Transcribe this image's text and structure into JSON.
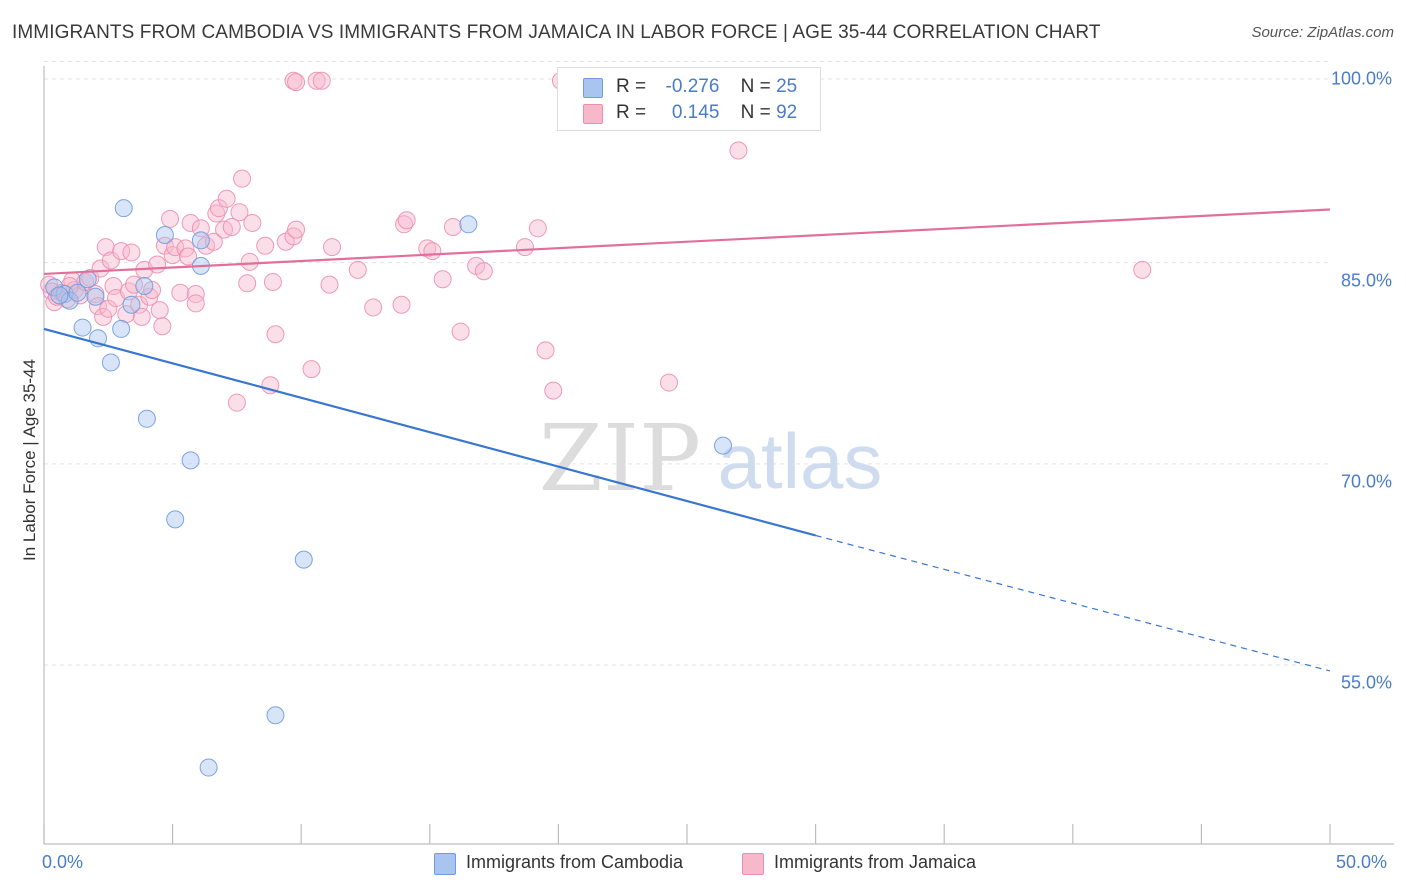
{
  "header": {
    "title": "IMMIGRANTS FROM CAMBODIA VS IMMIGRANTS FROM JAMAICA IN LABOR FORCE | AGE 35-44 CORRELATION CHART",
    "source": "Source: ZipAtlas.com"
  },
  "watermark": {
    "zip": "ZIP",
    "atlas": "atlas"
  },
  "legend": {
    "rows": [
      {
        "r_label": "R =",
        "r_value": "-0.276",
        "n_label": "N =",
        "n_value": "25",
        "color": "#a9c4ee",
        "stroke": "#6f9be0"
      },
      {
        "r_label": "R =",
        "r_value": " 0.145",
        "n_label": "N =",
        "n_value": "92",
        "color": "#f7b8cc",
        "stroke": "#ec8fae"
      }
    ]
  },
  "bottom_legend": {
    "items": [
      {
        "label": "Immigrants from Cambodia",
        "color": "#a9c4ee",
        "stroke": "#6f9be0"
      },
      {
        "label": "Immigrants from Jamaica",
        "color": "#f7b8cc",
        "stroke": "#ec8fae"
      }
    ]
  },
  "chart_data": {
    "type": "scatter",
    "xlabel": "",
    "ylabel": "In Labor Force | Age 35-44",
    "xlim": [
      0,
      50
    ],
    "ylim": [
      43,
      101
    ],
    "x_tick_labels": {
      "min": "0.0%",
      "max": "50.0%"
    },
    "y_ticks": [
      {
        "value": 100,
        "label": "100.0%"
      },
      {
        "value": 85,
        "label": "85.0%"
      },
      {
        "value": 70,
        "label": "70.0%"
      },
      {
        "value": 55,
        "label": "55.0%"
      }
    ],
    "grid": true,
    "series": [
      {
        "name": "Immigrants from Cambodia",
        "color": "#6f9be0",
        "fill": "#a9c4ee",
        "trend": {
          "x0": 0,
          "y0": 81.4,
          "x1": 30,
          "y1": 66.0,
          "dash_to_x": 50,
          "dash_to_y": 55.9,
          "color": "#3876d1"
        },
        "points": [
          [
            0.4,
            84.5
          ],
          [
            0.8,
            84.0
          ],
          [
            1.0,
            83.5
          ],
          [
            1.3,
            84.1
          ],
          [
            1.5,
            81.5
          ],
          [
            1.7,
            85.1
          ],
          [
            2.0,
            83.8
          ],
          [
            2.1,
            80.7
          ],
          [
            2.6,
            78.9
          ],
          [
            3.0,
            81.4
          ],
          [
            3.1,
            90.4
          ],
          [
            3.4,
            83.2
          ],
          [
            3.9,
            84.6
          ],
          [
            4.0,
            74.7
          ],
          [
            4.7,
            88.4
          ],
          [
            5.1,
            67.2
          ],
          [
            5.7,
            71.6
          ],
          [
            6.1,
            88.0
          ],
          [
            6.1,
            86.1
          ],
          [
            6.4,
            48.7
          ],
          [
            9.0,
            52.6
          ],
          [
            10.1,
            64.2
          ],
          [
            16.5,
            89.2
          ],
          [
            26.4,
            72.7
          ],
          [
            0.6,
            83.9
          ]
        ]
      },
      {
        "name": "Immigrants from Jamaica",
        "color": "#ec8fae",
        "fill": "#f7b8cc",
        "trend": {
          "x0": 0,
          "y0": 85.5,
          "x1": 50,
          "y1": 90.3,
          "color": "#e0709a"
        },
        "points": [
          [
            0.2,
            84.7
          ],
          [
            0.3,
            84.2
          ],
          [
            0.4,
            83.4
          ],
          [
            0.5,
            83.8
          ],
          [
            0.7,
            84.1
          ],
          [
            0.9,
            83.6
          ],
          [
            1.1,
            85.0
          ],
          [
            1.2,
            84.3
          ],
          [
            1.4,
            83.9
          ],
          [
            1.6,
            84.9
          ],
          [
            1.8,
            85.2
          ],
          [
            2.0,
            84.0
          ],
          [
            2.1,
            83.1
          ],
          [
            2.2,
            85.9
          ],
          [
            2.3,
            82.3
          ],
          [
            2.4,
            87.5
          ],
          [
            2.5,
            82.9
          ],
          [
            2.6,
            86.5
          ],
          [
            2.7,
            84.6
          ],
          [
            2.8,
            83.7
          ],
          [
            3.0,
            87.2
          ],
          [
            3.2,
            82.5
          ],
          [
            3.3,
            84.2
          ],
          [
            3.4,
            87.1
          ],
          [
            3.5,
            84.7
          ],
          [
            3.7,
            83.2
          ],
          [
            3.8,
            82.3
          ],
          [
            3.9,
            85.8
          ],
          [
            4.1,
            83.8
          ],
          [
            4.2,
            84.3
          ],
          [
            4.4,
            86.2
          ],
          [
            4.5,
            82.8
          ],
          [
            4.6,
            81.6
          ],
          [
            4.7,
            87.6
          ],
          [
            4.9,
            89.6
          ],
          [
            5.0,
            86.9
          ],
          [
            5.1,
            87.5
          ],
          [
            5.3,
            84.1
          ],
          [
            5.5,
            87.4
          ],
          [
            5.6,
            86.8
          ],
          [
            5.7,
            89.3
          ],
          [
            5.9,
            84.0
          ],
          [
            5.9,
            83.3
          ],
          [
            6.1,
            88.9
          ],
          [
            6.3,
            87.6
          ],
          [
            6.6,
            87.9
          ],
          [
            6.7,
            90.0
          ],
          [
            6.8,
            90.4
          ],
          [
            7.0,
            88.8
          ],
          [
            7.1,
            91.1
          ],
          [
            7.3,
            89.0
          ],
          [
            7.5,
            75.9
          ],
          [
            7.6,
            90.1
          ],
          [
            7.7,
            92.6
          ],
          [
            7.9,
            84.8
          ],
          [
            8.0,
            86.4
          ],
          [
            8.1,
            89.3
          ],
          [
            8.6,
            87.6
          ],
          [
            8.8,
            77.2
          ],
          [
            8.9,
            84.9
          ],
          [
            9.0,
            81.0
          ],
          [
            9.4,
            87.9
          ],
          [
            9.7,
            88.3
          ],
          [
            9.8,
            88.8
          ],
          [
            9.7,
            99.9
          ],
          [
            9.8,
            99.8
          ],
          [
            10.6,
            99.9
          ],
          [
            10.8,
            99.9
          ],
          [
            10.4,
            78.4
          ],
          [
            11.1,
            84.7
          ],
          [
            11.2,
            87.5
          ],
          [
            12.2,
            85.8
          ],
          [
            12.8,
            83.0
          ],
          [
            13.9,
            83.2
          ],
          [
            14.0,
            89.2
          ],
          [
            14.1,
            89.5
          ],
          [
            14.9,
            87.4
          ],
          [
            15.1,
            87.2
          ],
          [
            15.5,
            85.1
          ],
          [
            15.9,
            89.0
          ],
          [
            16.2,
            81.2
          ],
          [
            16.8,
            86.1
          ],
          [
            17.1,
            85.7
          ],
          [
            18.7,
            87.5
          ],
          [
            19.2,
            88.9
          ],
          [
            19.5,
            79.8
          ],
          [
            19.8,
            76.8
          ],
          [
            20.1,
            99.9
          ],
          [
            24.3,
            77.4
          ],
          [
            27.0,
            94.7
          ],
          [
            42.7,
            85.8
          ],
          [
            1.0,
            84.6
          ]
        ]
      }
    ]
  }
}
